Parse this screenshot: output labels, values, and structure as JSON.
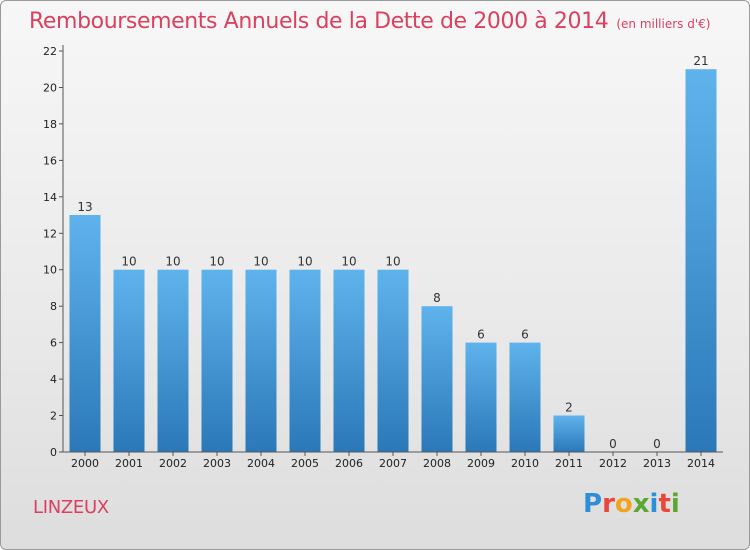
{
  "header": {
    "title": "Remboursements Annuels de la Dette de 2000 à 2014",
    "subtitle": "(en milliers d'€)"
  },
  "footer": {
    "commune": "LINZEUX",
    "logo_text": "Proxiti"
  },
  "colors": {
    "title": "#d9415f",
    "bar_top": "#5fb3ec",
    "bar_bottom": "#2b78b8",
    "logo_letters": [
      "#2f8fd6",
      "#e8473a",
      "#f2a41e",
      "#5aa832",
      "#2f8fd6",
      "#e8473a",
      "#5aa832"
    ]
  },
  "chart_data": {
    "type": "bar",
    "categories": [
      "2000",
      "2001",
      "2002",
      "2003",
      "2004",
      "2005",
      "2006",
      "2007",
      "2008",
      "2009",
      "2010",
      "2011",
      "2012",
      "2013",
      "2014"
    ],
    "values": [
      13,
      10,
      10,
      10,
      10,
      10,
      10,
      10,
      8,
      6,
      6,
      2,
      0,
      0,
      21
    ],
    "data_labels": [
      "13",
      "10",
      "10",
      "10",
      "10",
      "10",
      "10",
      "10",
      "8",
      "6",
      "6",
      "2",
      "0",
      "0",
      "21"
    ],
    "yticks": [
      0,
      2,
      4,
      6,
      8,
      10,
      12,
      14,
      16,
      18,
      20,
      22
    ],
    "ylim": [
      0,
      22
    ],
    "title": "Remboursements Annuels de la Dette de 2000 à 2014",
    "subtitle": "(en milliers d'€)",
    "xlabel": "",
    "ylabel": "",
    "grid": false,
    "legend": "none"
  }
}
